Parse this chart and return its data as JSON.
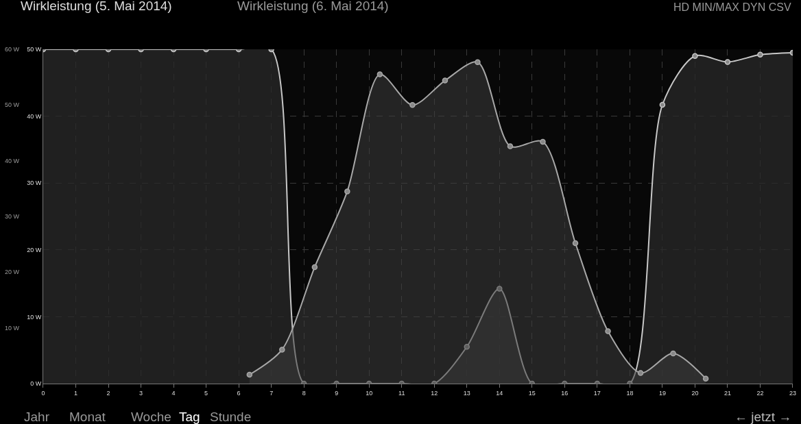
{
  "chart_data": {
    "type": "area",
    "title": "Wirkleistung (5. Mai 2014)",
    "subtitle": "Wirkleistung (6. Mai 2014)",
    "xlim": [
      0,
      23
    ],
    "xticks": [
      0,
      1,
      2,
      3,
      4,
      5,
      6,
      7,
      8,
      9,
      10,
      11,
      12,
      13,
      14,
      15,
      16,
      17,
      18,
      19,
      20,
      21,
      22,
      23
    ],
    "ylim": [
      0,
      50
    ],
    "yticks": [
      {
        "value": 0,
        "label": "0 W"
      },
      {
        "value": 10,
        "label": "10 W"
      },
      {
        "value": 20,
        "label": "20 W"
      },
      {
        "value": 30,
        "label": "30 W"
      },
      {
        "value": 40,
        "label": "40 W"
      },
      {
        "value": 50,
        "label": "50 W"
      }
    ],
    "y2lim": [
      0,
      60
    ],
    "y2ticks": [
      {
        "value": 10,
        "label": "10 W"
      },
      {
        "value": 20,
        "label": "20 W"
      },
      {
        "value": 30,
        "label": "30 W"
      },
      {
        "value": 40,
        "label": "40 W"
      },
      {
        "value": 50,
        "label": "50 W"
      },
      {
        "value": 60,
        "label": "60 W"
      }
    ],
    "grid": true,
    "marker": "circle",
    "line_style": "solid",
    "series": [
      {
        "color": "#c8c8c8",
        "x": [
          0,
          1,
          2,
          3,
          4,
          5,
          6,
          7,
          8,
          9,
          10,
          11,
          12,
          13,
          14,
          15,
          16,
          17,
          18,
          19,
          20,
          21,
          22,
          23
        ],
        "values": [
          50,
          50,
          50,
          50,
          50,
          50,
          50,
          50,
          0,
          0,
          0,
          0,
          0,
          5.5,
          14.2,
          0,
          0,
          0,
          0,
          41.7,
          49,
          48.1,
          49.2,
          49.5
        ]
      },
      {
        "color": "#a8a8a8",
        "axis": "y2",
        "x": [
          6.33,
          7.33,
          8.33,
          9.33,
          10.33,
          11.33,
          12.33,
          13.33,
          14.33,
          15.33,
          16.33,
          17.33,
          18.33,
          19.33,
          20.33
        ],
        "values": [
          1.6,
          6.1,
          20.9,
          34.5,
          55.5,
          50,
          54.4,
          57.7,
          42.6,
          43.4,
          25.2,
          9.4,
          1.9,
          5.4,
          0.9
        ]
      }
    ],
    "annotations": [
      "HD MIN/MAX DYN CSV",
      "Jahr",
      "Monat",
      "Woche",
      "Tag",
      "Stunde",
      "← jetzt →"
    ]
  }
}
